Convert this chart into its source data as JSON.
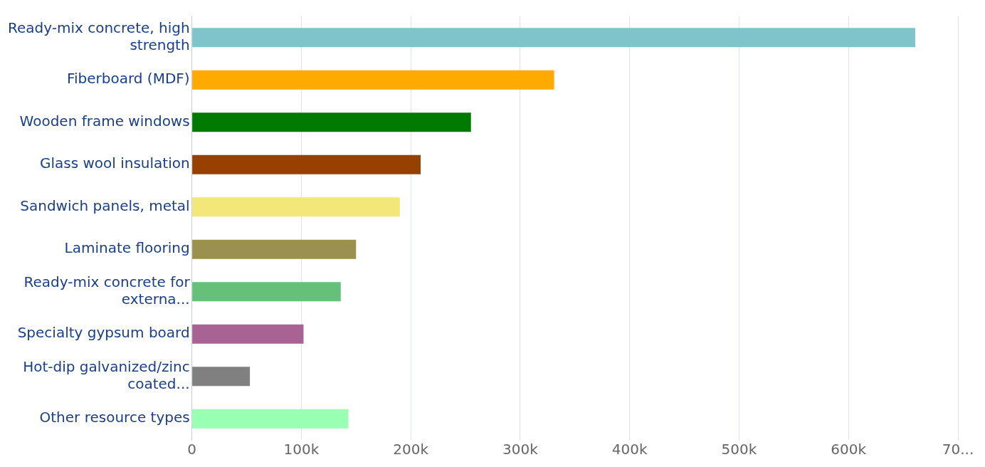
{
  "chart_data": {
    "type": "bar",
    "orientation": "horizontal",
    "categories": [
      "Ready-mix concrete, high strength",
      "Fiberboard (MDF)",
      "Wooden frame windows",
      "Glass wool insulation",
      "Sandwich panels, metal",
      "Laminate flooring",
      "Ready-mix concrete for externa...",
      "Specialty gypsum board",
      "Hot-dip galvanized/zinc coated...",
      "Other resource types"
    ],
    "values": [
      661000,
      331000,
      255000,
      209000,
      190000,
      150000,
      136000,
      102000,
      53000,
      143000
    ],
    "colors": [
      "#7fc4cb",
      "#ffaa00",
      "#007a00",
      "#984000",
      "#f3e77a",
      "#9c9050",
      "#66c07a",
      "#a86294",
      "#808080",
      "#99ffb3"
    ],
    "xlim": [
      0,
      700000
    ],
    "xticks": [
      0,
      {
        "value": 100000,
        "label": "100k"
      },
      {
        "value": 200000,
        "label": "200k"
      },
      {
        "value": 300000,
        "label": "300k"
      },
      {
        "value": 400000,
        "label": "400k"
      },
      {
        "value": 500000,
        "label": "500k"
      },
      {
        "value": 600000,
        "label": "600k"
      },
      {
        "value": 700000,
        "label": "70..."
      }
    ],
    "grid": "x"
  }
}
